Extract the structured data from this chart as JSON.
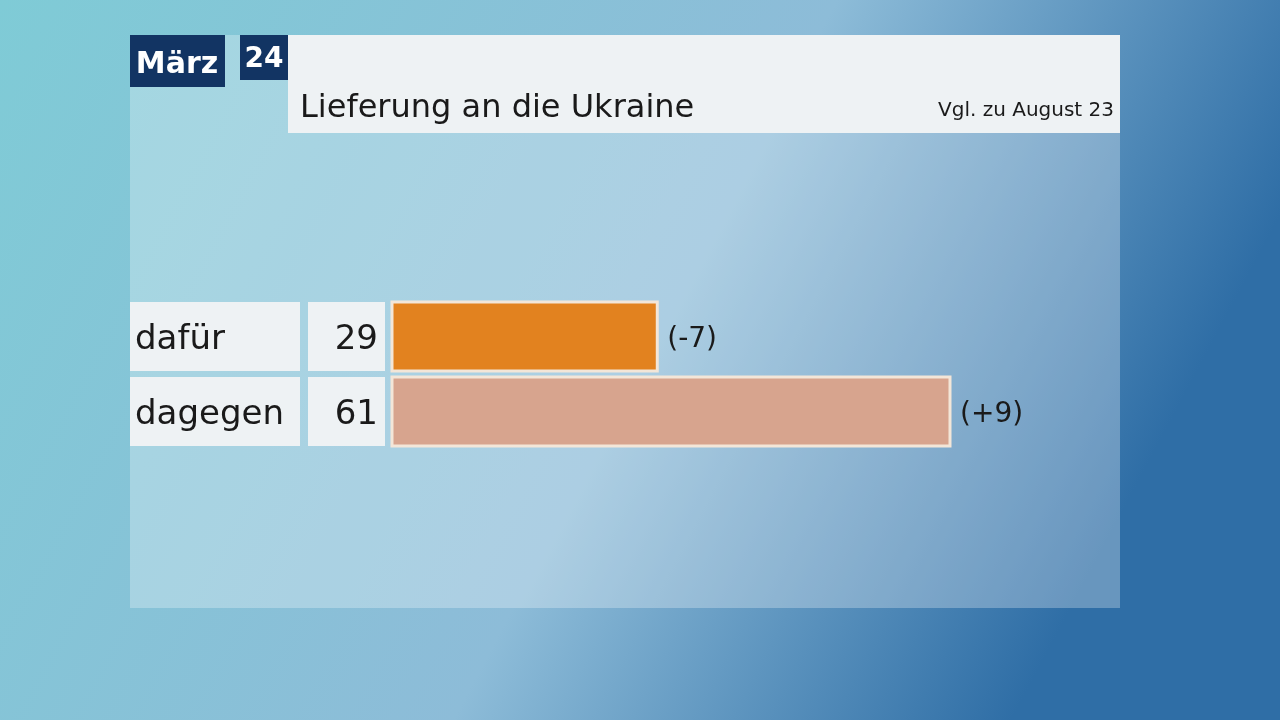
{
  "chart_data": {
    "type": "bar",
    "orientation": "horizontal",
    "title": "Lieferung an die Ukraine",
    "subtitle": "Vgl. zu August 23",
    "categories": [
      "dafür",
      "dagegen"
    ],
    "values": [
      29,
      61
    ],
    "colors": [
      "#e2821f",
      "#d7a48e"
    ],
    "data_labels": true,
    "annotations": [
      "März 24",
      {
        "text": "(-7)",
        "x": 29,
        "y": "dafür"
      },
      {
        "text": "(+9)",
        "x": 61,
        "y": "dagegen"
      }
    ]
  }
}
